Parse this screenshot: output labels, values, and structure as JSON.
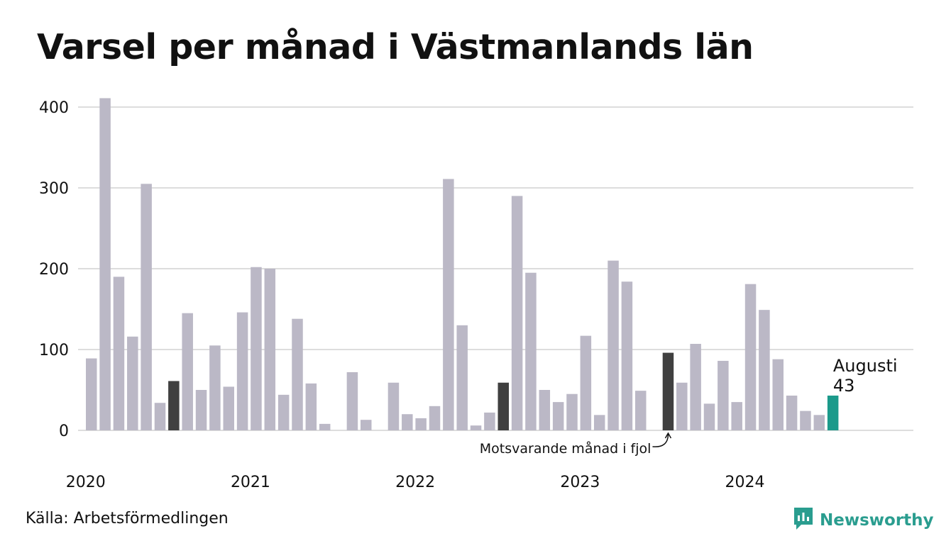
{
  "title": "Varsel per månad i Västmanlands län",
  "source": "Källa: Arbetsförmedlingen",
  "brand": {
    "name": "Newsworthy",
    "icon": "newsworthy-logo-icon"
  },
  "colors": {
    "bar": "#bbb8c6",
    "same_month_last_years": "#404040",
    "highlight": "#1b9a8b",
    "grid": "#dddddd",
    "brand": "#2a9d8f"
  },
  "chart_data": {
    "type": "bar",
    "ylim": [
      0,
      400
    ],
    "yticks": [
      0,
      100,
      200,
      300,
      400
    ],
    "grid": true,
    "xticks": [
      "2020",
      "2021",
      "2022",
      "2023",
      "2024"
    ],
    "start_month": "2020-01",
    "values": [
      89,
      411,
      190,
      116,
      305,
      34,
      61,
      145,
      50,
      105,
      54,
      146,
      202,
      200,
      44,
      138,
      58,
      8,
      0,
      72,
      13,
      0,
      59,
      20,
      15,
      30,
      311,
      130,
      6,
      22,
      59,
      290,
      195,
      50,
      35,
      45,
      117,
      19,
      210,
      184,
      49,
      0,
      96,
      59,
      107,
      33,
      86,
      35,
      181,
      149,
      88,
      43,
      24,
      19,
      43
    ],
    "dark_indices": [
      6,
      30,
      42
    ],
    "highlight_index": 54,
    "highlight_label": "Augusti",
    "highlight_value_label": "43",
    "annotation": "Motsvarande månad i fjol"
  }
}
